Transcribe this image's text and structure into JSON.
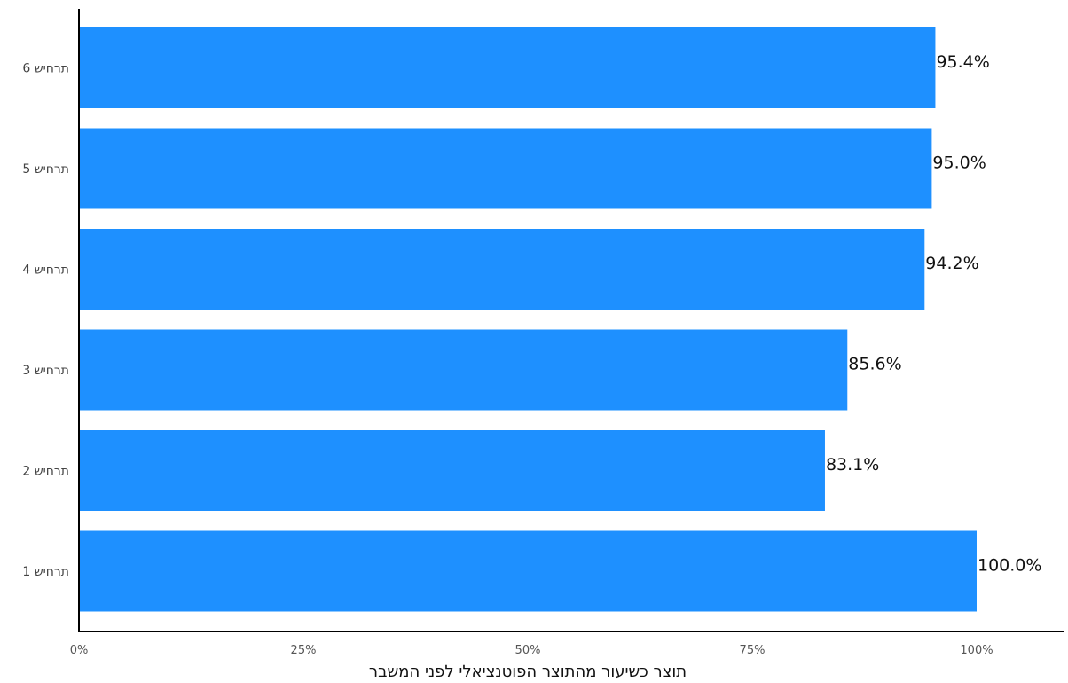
{
  "chart_data": {
    "type": "bar",
    "orientation": "horizontal",
    "categories": [
      "תרחיש 1",
      "תרחיש 2",
      "תרחיש 3",
      "תרחיש 4",
      "תרחיש 5",
      "תרחיש 6"
    ],
    "values": [
      100.0,
      83.1,
      85.6,
      94.2,
      95.0,
      95.4
    ],
    "value_labels": [
      "100.0%",
      "83.1%",
      "85.6%",
      "94.2%",
      "95.0%",
      "95.4%"
    ],
    "xlabel": "תוצר כשיעור מהתוצר הפוטנציאלי לפני המשבר",
    "ylabel": "",
    "xlim": [
      0,
      110
    ],
    "xticks": [
      0,
      25,
      50,
      75,
      100
    ],
    "xtick_labels": [
      "0%",
      "25%",
      "50%",
      "75%",
      "100%"
    ],
    "grid": false,
    "bar_color": "#1e90ff"
  }
}
